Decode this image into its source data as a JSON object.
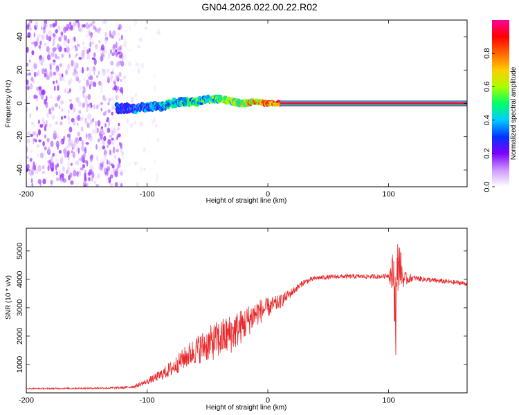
{
  "title": "GN04.2026.022.00.22.R02",
  "chart_data": [
    {
      "type": "heatmap",
      "xlabel": "Height of straight line (km)",
      "ylabel": "Frequency (Hz)",
      "xlim": [
        -200,
        165
      ],
      "ylim": [
        -50,
        50
      ],
      "x_ticks": [
        -200,
        -100,
        0,
        100
      ],
      "y_ticks": [
        -40,
        -20,
        0,
        20,
        40
      ],
      "colorbar": {
        "label": "Normalized spectral amplitude",
        "range": [
          0.0,
          1.0
        ],
        "ticks": [
          0.0,
          0.2,
          0.4,
          0.6,
          0.8
        ],
        "tick_labels": [
          "0.0",
          "0.2",
          "0.4",
          "0.6",
          "0.8"
        ],
        "colormap": [
          "#ffffff",
          "#cc99ff",
          "#7f00ff",
          "#0033ff",
          "#00ccff",
          "#00ff66",
          "#aaff00",
          "#ffcc00",
          "#ff6600",
          "#ff0000",
          "#ff0099"
        ]
      },
      "features": [
        {
          "name": "diffuse noise",
          "x_range": [
            -200,
            -120
          ],
          "freq_range": [
            -50,
            50
          ],
          "amplitude": 0.1
        },
        {
          "name": "sparse noise",
          "x_range": [
            -120,
            -90
          ],
          "freq_range": [
            -50,
            50
          ],
          "amplitude": 0.03
        },
        {
          "name": "carrier trace",
          "x": [
            -125,
            -110,
            -100,
            -90,
            -80,
            -70,
            -60,
            -50,
            -40,
            -30,
            -20,
            -10,
            0,
            10
          ],
          "freq": [
            -3,
            -3,
            -2,
            -2,
            0,
            1,
            1,
            2,
            3,
            1,
            0,
            1,
            0,
            0
          ],
          "amplitude": [
            0.3,
            0.35,
            0.35,
            0.4,
            0.45,
            0.45,
            0.5,
            0.5,
            0.55,
            0.6,
            0.7,
            0.75,
            0.85,
            0.9
          ]
        },
        {
          "name": "clean carrier",
          "x_range": [
            10,
            165
          ],
          "freq": 0,
          "amplitude": 0.95
        }
      ]
    },
    {
      "type": "line",
      "xlabel": "Height of straight line (km)",
      "ylabel": "SNR (10 * v/v)",
      "xlim": [
        -200,
        165
      ],
      "ylim": [
        0,
        5800
      ],
      "x_ticks": [
        -200,
        -100,
        0,
        100
      ],
      "y_ticks": [
        1000,
        2000,
        3000,
        4000,
        5000
      ],
      "series": [
        {
          "name": "SNR",
          "color": "#e8282b",
          "x": [
            -200,
            -150,
            -120,
            -110,
            -100,
            -90,
            -80,
            -70,
            -60,
            -50,
            -40,
            -30,
            -20,
            -10,
            0,
            10,
            20,
            30,
            40,
            60,
            80,
            95,
            100,
            104,
            106,
            108,
            112,
            120,
            140,
            165
          ],
          "y": [
            150,
            160,
            180,
            230,
            400,
            600,
            850,
            1200,
            1500,
            1700,
            1900,
            2100,
            2400,
            2800,
            3000,
            3200,
            3550,
            3900,
            4050,
            4100,
            4100,
            4100,
            4150,
            4200,
            2800,
            4800,
            4000,
            4050,
            3950,
            3850
          ],
          "noise_amplitude": [
            20,
            30,
            40,
            60,
            100,
            180,
            280,
            380,
            500,
            600,
            700,
            700,
            600,
            500,
            350,
            250,
            150,
            100,
            80,
            80,
            80,
            80,
            100,
            900,
            1600,
            1000,
            300,
            100,
            90,
            80
          ]
        }
      ]
    }
  ]
}
